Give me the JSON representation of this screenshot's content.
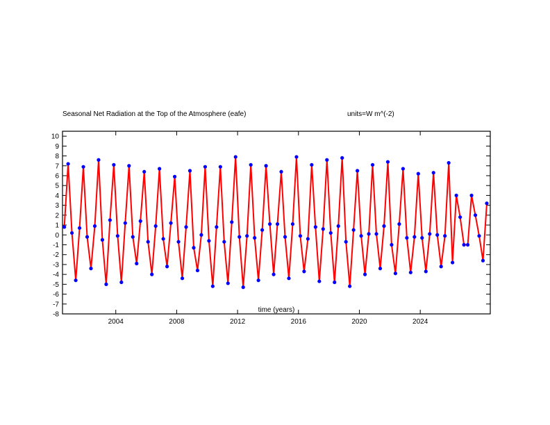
{
  "chart_data": {
    "type": "line",
    "title": "Seasonal Net Radiation at the Top of the Atmosphere (eafe)",
    "units_label": "units=W m^(-2)",
    "xlabel": "time (years)",
    "ylabel": "",
    "xlim": [
      2000.5,
      2028.6
    ],
    "ylim": [
      -8,
      10.5
    ],
    "x_ticks": [
      2004,
      2008,
      2012,
      2016,
      2020,
      2024
    ],
    "x_tick_labels": [
      "2004",
      "2008",
      "2012",
      "2016",
      "2020",
      "2024"
    ],
    "y_ticks": [
      -8,
      -7,
      -6,
      -5,
      -4,
      -3,
      -2,
      -1,
      0,
      1,
      2,
      3,
      4,
      5,
      6,
      7,
      8,
      9,
      10
    ],
    "y_tick_labels": [
      "-8",
      "-7",
      "-6",
      "-5",
      "-4",
      "-3",
      "-2",
      "-1",
      "0",
      "1",
      "2",
      "3",
      "4",
      "5",
      "6",
      "7",
      "8",
      "9",
      "10"
    ],
    "grid": false,
    "series": [
      {
        "line_color": "#ff0000",
        "marker_color": "#0000ff",
        "x": [
          2000.62,
          2000.87,
          2001.12,
          2001.37,
          2001.62,
          2001.87,
          2002.12,
          2002.37,
          2002.62,
          2002.87,
          2003.12,
          2003.37,
          2003.62,
          2003.87,
          2004.12,
          2004.37,
          2004.62,
          2004.87,
          2005.12,
          2005.37,
          2005.62,
          2005.87,
          2006.12,
          2006.37,
          2006.62,
          2006.87,
          2007.12,
          2007.37,
          2007.62,
          2007.87,
          2008.12,
          2008.37,
          2008.62,
          2008.87,
          2009.12,
          2009.37,
          2009.62,
          2009.87,
          2010.12,
          2010.37,
          2010.62,
          2010.87,
          2011.12,
          2011.37,
          2011.62,
          2011.87,
          2012.12,
          2012.37,
          2012.62,
          2012.87,
          2013.12,
          2013.37,
          2013.62,
          2013.87,
          2014.12,
          2014.37,
          2014.62,
          2014.87,
          2015.12,
          2015.37,
          2015.62,
          2015.87,
          2016.12,
          2016.37,
          2016.62,
          2016.87,
          2017.12,
          2017.37,
          2017.62,
          2017.87,
          2018.12,
          2018.37,
          2018.62,
          2018.87,
          2019.12,
          2019.37,
          2019.62,
          2019.87,
          2020.12,
          2020.37,
          2020.62,
          2020.87,
          2021.12,
          2021.37,
          2021.62,
          2021.87,
          2022.12,
          2022.37,
          2022.62,
          2022.87,
          2023.12,
          2023.37,
          2023.62,
          2023.87,
          2024.12,
          2024.37,
          2024.62,
          2024.87,
          2025.12,
          2025.37,
          2025.62,
          2025.87,
          2026.12,
          2026.37,
          2026.62,
          2026.87,
          2027.12,
          2027.37,
          2027.62,
          2027.87,
          2028.12,
          2028.37
        ],
        "values": [
          0.8,
          7.2,
          0.2,
          -4.6,
          0.7,
          6.9,
          -0.2,
          -3.4,
          0.9,
          7.6,
          -0.5,
          -5.0,
          1.5,
          7.1,
          -0.1,
          -4.8,
          1.2,
          7.0,
          -0.2,
          -2.9,
          1.4,
          6.4,
          -0.7,
          -4.0,
          0.9,
          6.7,
          -0.4,
          -3.2,
          1.2,
          5.9,
          -0.7,
          -4.4,
          0.8,
          6.5,
          -1.3,
          -3.6,
          0.0,
          6.9,
          -0.6,
          -5.2,
          0.8,
          6.9,
          -0.7,
          -4.9,
          1.3,
          7.9,
          -0.2,
          -5.3,
          -0.1,
          7.1,
          -0.3,
          -4.6,
          0.5,
          7.0,
          1.1,
          -4.0,
          1.1,
          6.4,
          -0.2,
          -4.4,
          1.1,
          7.9,
          -0.1,
          -3.7,
          -0.4,
          7.1,
          0.8,
          -4.7,
          0.6,
          7.6,
          0.2,
          -4.8,
          0.9,
          7.8,
          -0.7,
          -5.2,
          0.5,
          6.5,
          -0.1,
          -4.0,
          0.1,
          7.1,
          0.1,
          -3.4,
          0.9,
          7.4,
          -1.0,
          -3.9,
          1.1,
          6.7,
          -0.3,
          -3.8,
          -0.2,
          6.2,
          -0.3,
          -3.7,
          0.1,
          6.3,
          0.0,
          -3.2,
          -0.1,
          7.3,
          -2.8,
          4.0,
          1.8,
          -1.0,
          -1.0,
          4.0,
          2.0,
          -0.1,
          -2.6,
          3.2
        ]
      }
    ]
  }
}
